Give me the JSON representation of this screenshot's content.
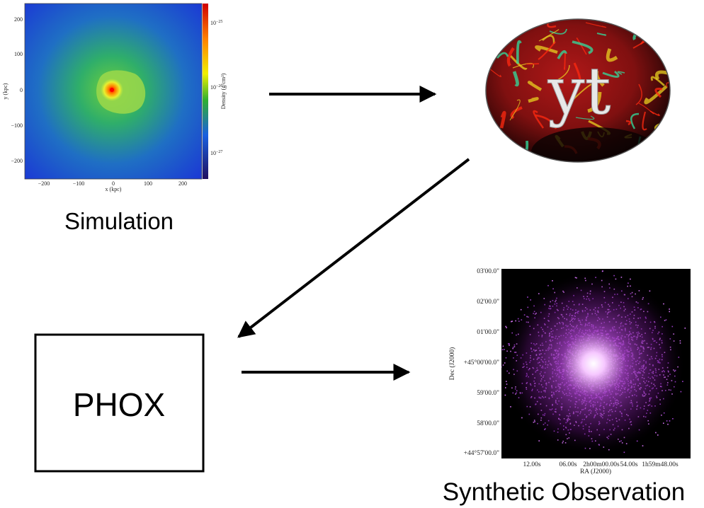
{
  "simulation": {
    "label": "Simulation",
    "x_axis_label": "x (kpc)",
    "y_axis_label": "y (kpc)",
    "x_ticks": [
      "−200",
      "−100",
      "0",
      "100",
      "200"
    ],
    "y_ticks": [
      "200",
      "100",
      "0",
      "−100",
      "−200"
    ],
    "colorbar_label": "Density (g/cm³)",
    "colorbar_ticks": [
      {
        "base": "10",
        "exp": "−25"
      },
      {
        "base": "10",
        "exp": "−26"
      },
      {
        "base": "10",
        "exp": "−27"
      }
    ]
  },
  "yt": {
    "label": "yt"
  },
  "phox": {
    "label": "PHOX"
  },
  "observation": {
    "label": "Synthetic Observation",
    "x_axis_label": "RA (J2000)",
    "y_axis_label": "Dec (J2000)",
    "x_ticks": [
      "12.00s",
      "06.00s",
      "2h00m00.00s",
      "54.00s",
      "1h59m48.00s"
    ],
    "y_ticks": [
      "03'00.0\"",
      "02'00.0\"",
      "01'00.0\"",
      "+45°00'00.0\"",
      "59'00.0\"",
      "58'00.0\"",
      "+44°57'00.0\""
    ]
  }
}
